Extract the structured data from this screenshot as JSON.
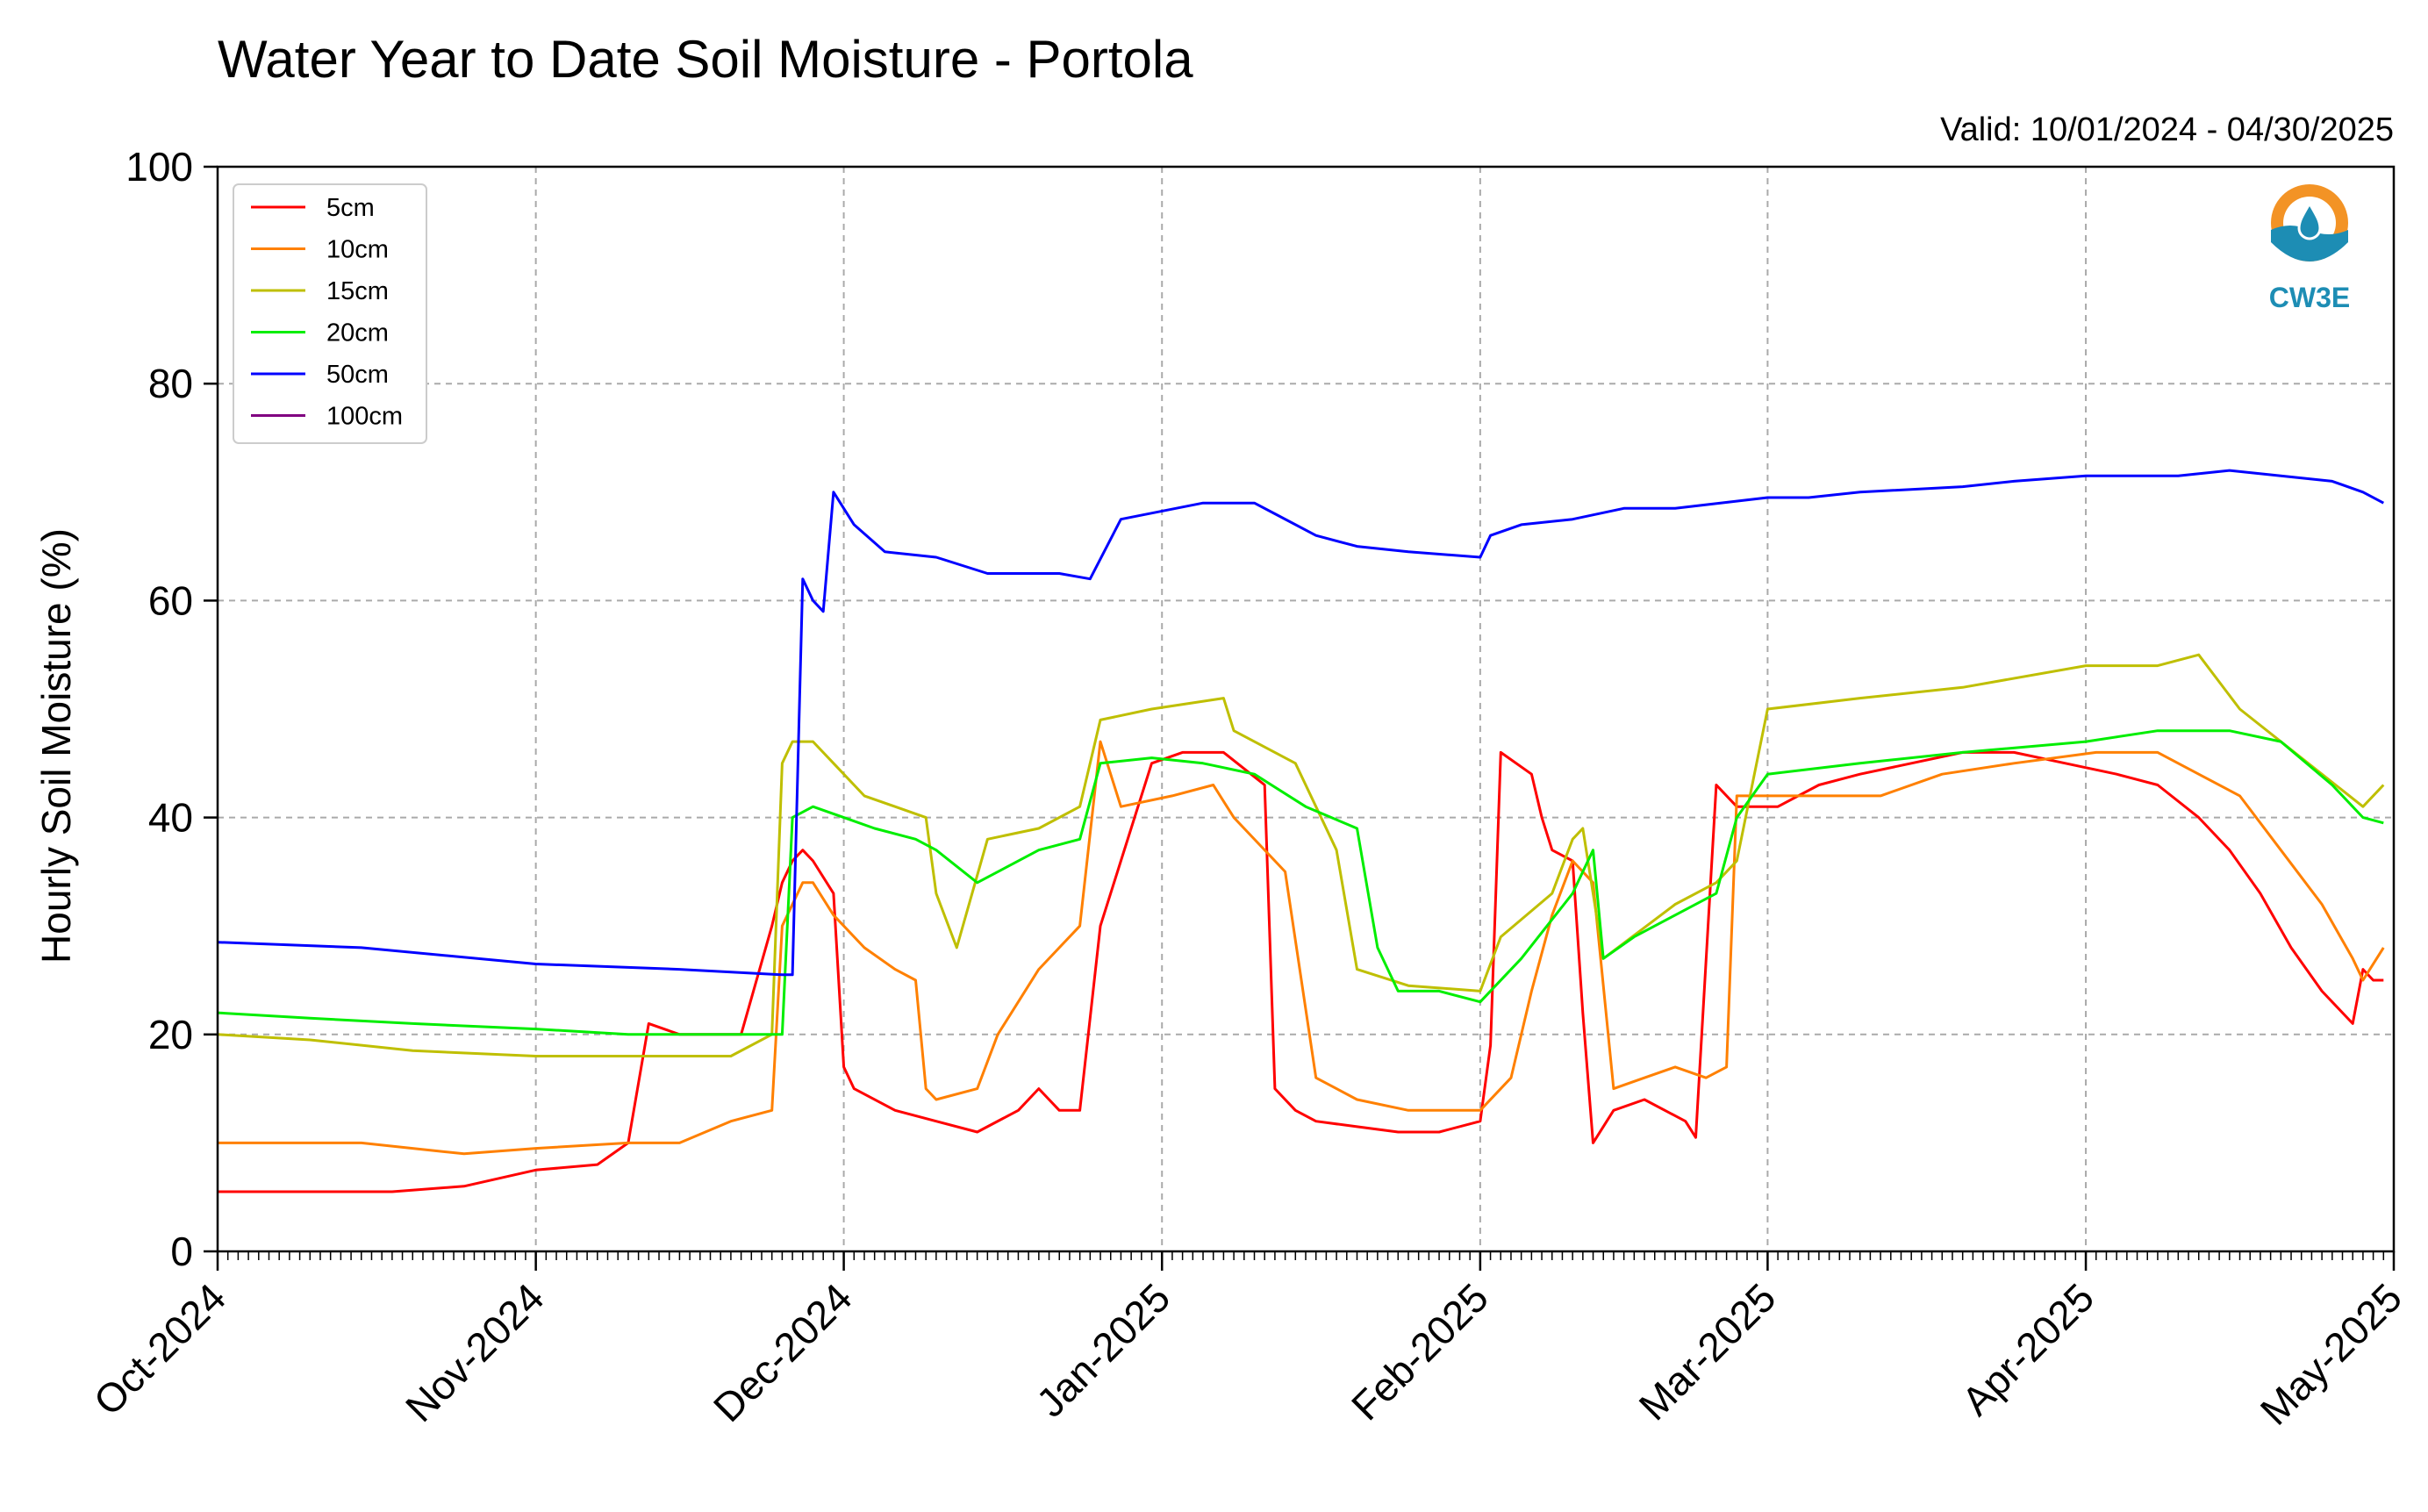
{
  "chart_data": {
    "type": "line",
    "title": "Water Year to Date Soil Moisture - Portola",
    "subtitle": "Valid: 10/01/2024 - 04/30/2025",
    "ylabel": "Hourly Soil Moisture (%)",
    "xlabel": "",
    "ylim": [
      0,
      100
    ],
    "yticks": [
      0,
      20,
      40,
      60,
      80,
      100
    ],
    "xlim": [
      "2024-10-01",
      "2025-05-01"
    ],
    "xticks": [
      {
        "date": "2024-10-01",
        "label": "Oct-2024"
      },
      {
        "date": "2024-11-01",
        "label": "Nov-2024"
      },
      {
        "date": "2024-12-01",
        "label": "Dec-2024"
      },
      {
        "date": "2025-01-01",
        "label": "Jan-2025"
      },
      {
        "date": "2025-02-01",
        "label": "Feb-2025"
      },
      {
        "date": "2025-03-01",
        "label": "Mar-2025"
      },
      {
        "date": "2025-04-01",
        "label": "Apr-2025"
      },
      {
        "date": "2025-05-01",
        "label": "May-2025"
      }
    ],
    "grid": true,
    "legend_position": "top-left",
    "series": [
      {
        "name": "5cm",
        "color": "#ff0000",
        "x": [
          "2024-10-01",
          "2024-10-10",
          "2024-10-18",
          "2024-10-25",
          "2024-11-01",
          "2024-11-07",
          "2024-11-10",
          "2024-11-12",
          "2024-11-15",
          "2024-11-19",
          "2024-11-21",
          "2024-11-24",
          "2024-11-25",
          "2024-11-26",
          "2024-11-27",
          "2024-11-28",
          "2024-11-30",
          "2024-12-01",
          "2024-12-02",
          "2024-12-06",
          "2024-12-10",
          "2024-12-14",
          "2024-12-18",
          "2024-12-20",
          "2024-12-22",
          "2024-12-24",
          "2024-12-26",
          "2024-12-28",
          "2024-12-31",
          "2025-01-03",
          "2025-01-07",
          "2025-01-11",
          "2025-01-12",
          "2025-01-14",
          "2025-01-16",
          "2025-01-20",
          "2025-01-24",
          "2025-01-28",
          "2025-02-01",
          "2025-02-02",
          "2025-02-03",
          "2025-02-06",
          "2025-02-07",
          "2025-02-08",
          "2025-02-10",
          "2025-02-11",
          "2025-02-12",
          "2025-02-14",
          "2025-02-17",
          "2025-02-21",
          "2025-02-22",
          "2025-02-24",
          "2025-02-26",
          "2025-03-02",
          "2025-03-06",
          "2025-03-10",
          "2025-03-15",
          "2025-03-20",
          "2025-03-25",
          "2025-03-30",
          "2025-04-04",
          "2025-04-08",
          "2025-04-12",
          "2025-04-15",
          "2025-04-18",
          "2025-04-21",
          "2025-04-24",
          "2025-04-27",
          "2025-04-28",
          "2025-04-29",
          "2025-04-30"
        ],
        "values": [
          5.5,
          5.5,
          5.5,
          6,
          7.5,
          8,
          10,
          21,
          20,
          20,
          20,
          30,
          34,
          36,
          37,
          36,
          33,
          17,
          15,
          13,
          12,
          11,
          13,
          15,
          13,
          13,
          30,
          36,
          45,
          46,
          46,
          43,
          15,
          13,
          12,
          11.5,
          11,
          11,
          12,
          19,
          46,
          44,
          40,
          37,
          36,
          22,
          10,
          13,
          14,
          12,
          10.5,
          43,
          41,
          41,
          43,
          44,
          45,
          46,
          46,
          45,
          44,
          43,
          40,
          37,
          33,
          28,
          24,
          21,
          26,
          25,
          25
        ]
      },
      {
        "name": "10cm",
        "color": "#ff8000",
        "x": [
          "2024-10-01",
          "2024-10-15",
          "2024-10-25",
          "2024-11-01",
          "2024-11-10",
          "2024-11-15",
          "2024-11-20",
          "2024-11-24",
          "2024-11-25",
          "2024-11-27",
          "2024-11-28",
          "2024-11-30",
          "2024-12-03",
          "2024-12-06",
          "2024-12-08",
          "2024-12-09",
          "2024-12-10",
          "2024-12-14",
          "2024-12-16",
          "2024-12-20",
          "2024-12-22",
          "2024-12-24",
          "2024-12-26",
          "2024-12-28",
          "2025-01-02",
          "2025-01-06",
          "2025-01-08",
          "2025-01-12",
          "2025-01-13",
          "2025-01-16",
          "2025-01-20",
          "2025-01-25",
          "2025-02-01",
          "2025-02-04",
          "2025-02-06",
          "2025-02-08",
          "2025-02-10",
          "2025-02-12",
          "2025-02-14",
          "2025-02-17",
          "2025-02-20",
          "2025-02-23",
          "2025-02-25",
          "2025-02-26",
          "2025-03-03",
          "2025-03-08",
          "2025-03-12",
          "2025-03-18",
          "2025-03-25",
          "2025-04-02",
          "2025-04-08",
          "2025-04-12",
          "2025-04-16",
          "2025-04-20",
          "2025-04-24",
          "2025-04-27",
          "2025-04-28",
          "2025-04-30"
        ],
        "values": [
          10,
          10,
          9,
          9.5,
          10,
          10,
          12,
          13,
          30,
          34,
          34,
          31,
          28,
          26,
          25,
          15,
          14,
          15,
          20,
          26,
          28,
          30,
          47,
          41,
          42,
          43,
          40,
          36,
          35,
          16,
          14,
          13,
          13,
          16,
          24,
          31,
          36,
          34,
          15,
          16,
          17,
          16,
          17,
          42,
          42,
          42,
          42,
          44,
          45,
          46,
          46,
          44,
          42,
          37,
          32,
          27,
          25,
          28
        ]
      },
      {
        "name": "15cm",
        "color": "#bfbf00",
        "x": [
          "2024-10-01",
          "2024-10-10",
          "2024-10-20",
          "2024-11-01",
          "2024-11-10",
          "2024-11-20",
          "2024-11-24",
          "2024-11-25",
          "2024-11-26",
          "2024-11-28",
          "2024-11-30",
          "2024-12-03",
          "2024-12-06",
          "2024-12-09",
          "2024-12-10",
          "2024-12-12",
          "2024-12-15",
          "2024-12-20",
          "2024-12-24",
          "2024-12-26",
          "2024-12-31",
          "2025-01-07",
          "2025-01-08",
          "2025-01-14",
          "2025-01-16",
          "2025-01-18",
          "2025-01-20",
          "2025-01-25",
          "2025-02-01",
          "2025-02-03",
          "2025-02-08",
          "2025-02-10",
          "2025-02-11",
          "2025-02-13",
          "2025-02-20",
          "2025-02-24",
          "2025-02-26",
          "2025-03-01",
          "2025-03-10",
          "2025-03-20",
          "2025-04-01",
          "2025-04-08",
          "2025-04-12",
          "2025-04-16",
          "2025-04-20",
          "2025-04-24",
          "2025-04-28",
          "2025-04-30"
        ],
        "values": [
          20,
          19.5,
          18.5,
          18,
          18,
          18,
          20,
          45,
          47,
          47,
          45,
          42,
          41,
          40,
          33,
          28,
          38,
          39,
          41,
          49,
          50,
          51,
          48,
          45,
          41,
          37,
          26,
          24.5,
          24,
          29,
          33,
          38,
          39,
          27,
          32,
          34,
          36,
          50,
          51,
          52,
          54,
          54,
          55,
          50,
          47,
          44,
          41,
          43
        ]
      },
      {
        "name": "20cm",
        "color": "#00ee00",
        "x": [
          "2024-10-01",
          "2024-10-10",
          "2024-10-20",
          "2024-11-01",
          "2024-11-10",
          "2024-11-20",
          "2024-11-25",
          "2024-11-26",
          "2024-11-28",
          "2024-12-01",
          "2024-12-04",
          "2024-12-08",
          "2024-12-10",
          "2024-12-14",
          "2024-12-20",
          "2024-12-24",
          "2024-12-26",
          "2024-12-31",
          "2025-01-05",
          "2025-01-10",
          "2025-01-15",
          "2025-01-20",
          "2025-01-22",
          "2025-01-24",
          "2025-01-28",
          "2025-02-01",
          "2025-02-05",
          "2025-02-10",
          "2025-02-11",
          "2025-02-12",
          "2025-02-13",
          "2025-02-16",
          "2025-02-20",
          "2025-02-24",
          "2025-02-26",
          "2025-03-01",
          "2025-03-10",
          "2025-03-20",
          "2025-04-01",
          "2025-04-08",
          "2025-04-12",
          "2025-04-15",
          "2025-04-20",
          "2025-04-25",
          "2025-04-28",
          "2025-04-30"
        ],
        "values": [
          22,
          21.5,
          21,
          20.5,
          20,
          20,
          20,
          40,
          41,
          40,
          39,
          38,
          37,
          34,
          37,
          38,
          45,
          45.5,
          45,
          44,
          41,
          39,
          28,
          24,
          24,
          23,
          27,
          33,
          35,
          37,
          27,
          29,
          31,
          33,
          40,
          44,
          45,
          46,
          47,
          48,
          48,
          48,
          47,
          43,
          40,
          39.5
        ]
      },
      {
        "name": "50cm",
        "color": "#0000ff",
        "x": [
          "2024-10-01",
          "2024-10-15",
          "2024-11-01",
          "2024-11-15",
          "2024-11-25",
          "2024-11-26",
          "2024-11-27",
          "2024-11-28",
          "2024-11-29",
          "2024-11-30",
          "2024-12-02",
          "2024-12-05",
          "2024-12-10",
          "2024-12-15",
          "2024-12-20",
          "2024-12-22",
          "2024-12-25",
          "2024-12-28",
          "2025-01-05",
          "2025-01-10",
          "2025-01-12",
          "2025-01-16",
          "2025-01-20",
          "2025-01-25",
          "2025-02-01",
          "2025-02-02",
          "2025-02-05",
          "2025-02-10",
          "2025-02-15",
          "2025-02-20",
          "2025-03-01",
          "2025-03-05",
          "2025-03-10",
          "2025-03-20",
          "2025-03-25",
          "2025-04-01",
          "2025-04-10",
          "2025-04-15",
          "2025-04-20",
          "2025-04-25",
          "2025-04-28",
          "2025-04-30"
        ],
        "values": [
          28.5,
          28,
          26.5,
          26,
          25.5,
          25.5,
          62,
          60,
          59,
          70,
          67,
          64.5,
          64,
          62.5,
          62.5,
          62.5,
          62,
          67.5,
          69,
          69,
          68,
          66,
          65,
          64.5,
          64,
          66,
          67,
          67.5,
          68.5,
          68.5,
          69.5,
          69.5,
          70,
          70.5,
          71,
          71.5,
          71.5,
          72,
          71.5,
          71,
          70,
          69
        ]
      },
      {
        "name": "100cm",
        "color": "#800080",
        "x": [],
        "values": []
      }
    ]
  },
  "logo": {
    "text": "CW3E",
    "colors": {
      "orange": "#f39325",
      "teal": "#1d8db4"
    }
  }
}
